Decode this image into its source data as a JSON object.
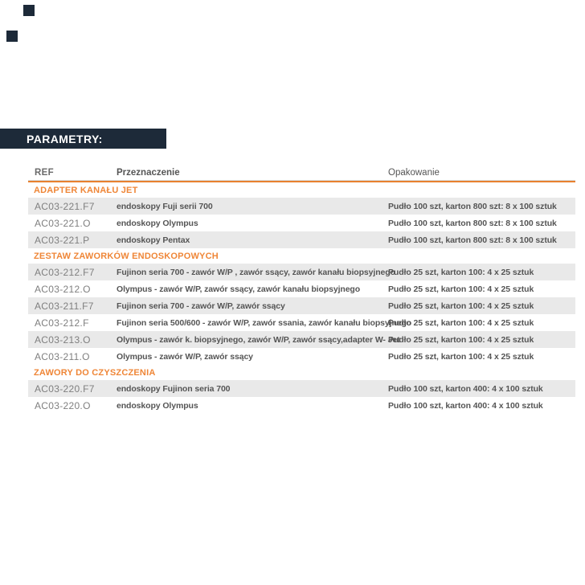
{
  "colors": {
    "navy": "#1d2a39",
    "accent_orange": "#e8812f",
    "section_orange": "#ef8637",
    "row_gray": "#e9e9e9"
  },
  "header_bar": {
    "title": "PARAMETRY:"
  },
  "table": {
    "columns": {
      "ref": "REF",
      "purpose": "Przeznaczenie",
      "packaging": "Opakowanie"
    },
    "sections": [
      {
        "title": "ADAPTER KANAŁU JET",
        "rows": [
          {
            "ref": "AC03-221.F7",
            "purpose": "endoskopy Fuji serii 700",
            "packaging": "Pudło 100 szt, karton 800 szt: 8 x 100 sztuk"
          },
          {
            "ref": "AC03-221.O",
            "purpose": "endoskopy Olympus",
            "packaging": "Pudło 100 szt, karton 800 szt: 8 x 100 sztuk"
          },
          {
            "ref": "AC03-221.P",
            "purpose": "endoskopy Pentax",
            "packaging": "Pudło 100 szt, karton 800 szt: 8 x 100 sztuk"
          }
        ]
      },
      {
        "title": "ZESTAW ZAWORKÓW ENDOSKOPOWYCH",
        "rows": [
          {
            "ref": "AC03-212.F7",
            "purpose": "Fujinon seria 700 - zawór W/P , zawór ssący, zawór kanału biopsyjnego",
            "packaging": "Pudło 25 szt, karton 100: 4 x 25 sztuk"
          },
          {
            "ref": "AC03-212.O",
            "purpose": "Olympus - zawór W/P, zawór ssący, zawór kanału biopsyjnego",
            "packaging": "Pudło 25 szt, karton 100: 4 x 25 sztuk"
          },
          {
            "ref": "AC03-211.F7",
            "purpose": "Fujinon seria 700 - zawór W/P, zawór ssący",
            "packaging": "Pudło 25 szt, karton 100: 4 x 25 sztuk"
          },
          {
            "ref": "AC03-212.F",
            "purpose": "Fujinon seria 500/600 - zawór W/P, zawór ssania, zawór kanału biopsyjnego",
            "packaging": "Pudło 25 szt, karton 100: 4 x 25 sztuk"
          },
          {
            "ref": "AC03-213.O",
            "purpose": "Olympus - zawór k. biopsyjnego, zawór W/P, zawór ssący,adapter W- Jet",
            "packaging": "Pudło 25 szt, karton 100: 4 x 25 sztuk"
          },
          {
            "ref": "AC03-211.O",
            "purpose": "Olympus - zawór W/P, zawór ssący",
            "packaging": "Pudło 25 szt, karton 100: 4 x 25 sztuk"
          }
        ]
      },
      {
        "title": "ZAWORY DO CZYSZCZENIA",
        "rows": [
          {
            "ref": "AC03-220.F7",
            "purpose": "endoskopy Fujinon seria 700",
            "packaging": "Pudło 100 szt, karton 400: 4 x 100 sztuk"
          },
          {
            "ref": "AC03-220.O",
            "purpose": "endoskopy Olympus",
            "packaging": "Pudło 100 szt, karton 400: 4 x 100 sztuk"
          }
        ]
      }
    ]
  }
}
